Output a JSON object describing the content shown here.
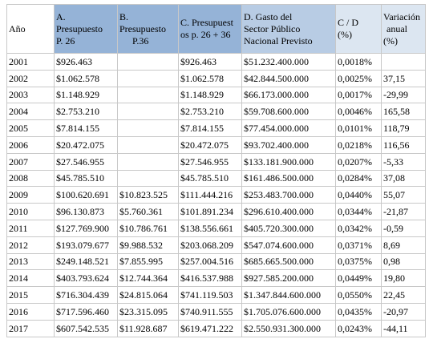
{
  "table": {
    "header": [
      [
        "Año"
      ],
      [
        "A.",
        "Presupuesto",
        "P. 26"
      ],
      [
        "B.",
        "Presupuesto",
        "P.36"
      ],
      [
        "C. Presupuest",
        "os p. 26 + 36"
      ],
      [
        "D. Gasto del",
        "Sector Público",
        "Nacional Previsto"
      ],
      [
        "C / D",
        "(%)"
      ],
      [
        "Variación",
        "anual",
        "(%)"
      ]
    ],
    "rows": [
      [
        "2001",
        "$926.463",
        null,
        "$926.463",
        "$51.232.400.000",
        "0,0018%",
        null
      ],
      [
        "2002",
        "$1.062.578",
        null,
        "$1.062.578",
        "$42.844.500.000",
        "0,0025%",
        "37,15"
      ],
      [
        "2003",
        "$1.148.929",
        null,
        "$1.148.929",
        "$66.173.000.000",
        "0,0017%",
        "-29,99"
      ],
      [
        "2004",
        "$2.753.210",
        null,
        "$2.753.210",
        "$59.708.600.000",
        "0,0046%",
        "165,58"
      ],
      [
        "2005",
        "$7.814.155",
        null,
        "$7.814.155",
        "$77.454.000.000",
        "0,0101%",
        "118,79"
      ],
      [
        "2006",
        "$20.472.075",
        null,
        "$20.472.075",
        "$93.702.400.000",
        "0,0218%",
        "116,56"
      ],
      [
        "2007",
        "$27.546.955",
        null,
        "$27.546.955",
        "$133.181.900.000",
        "0,0207%",
        "-5,33"
      ],
      [
        "2008",
        "$45.785.510",
        null,
        "$45.785.510",
        "$161.486.500.000",
        "0,0284%",
        "37,08"
      ],
      [
        "2009",
        "$100.620.691",
        "$10.823.525",
        "$111.444.216",
        "$253.483.700.000",
        "0,0440%",
        "55,07"
      ],
      [
        "2010",
        "$96.130.873",
        "$5.760.361",
        "$101.891.234",
        "$296.610.400.000",
        "0,0344%",
        "-21,87"
      ],
      [
        "2011",
        "$127.769.900",
        "$10.786.761",
        "$138.556.661",
        "$405.720.300.000",
        "0,0342%",
        "-0,59"
      ],
      [
        "2012",
        "$193.079.677",
        "$9.988.532",
        "$203.068.209",
        "$547.074.600.000",
        "0,0371%",
        "8,69"
      ],
      [
        "2013",
        "$249.148.521",
        "$7.855.995",
        "$257.004.516",
        "$685.665.500.000",
        "0,0375%",
        "0,98"
      ],
      [
        "2014",
        "$403.793.624",
        "$12.744.364",
        "$416.537.988",
        "$927.585.200.000",
        "0,0449%",
        "19,80"
      ],
      [
        "2015",
        "$716.304.439",
        "$24.815.064",
        "$741.119.503",
        "$1.347.844.600.000",
        "0,0550%",
        "22,45"
      ],
      [
        "2016",
        "$717.596.460",
        "$23.315.095",
        "$740.911.555",
        "$1.705.076.600.000",
        "0,0435%",
        "-20,97"
      ],
      [
        "2017",
        "$607.542.535",
        "$11.928.687",
        "$619.471.222",
        "$2.550.931.300.000",
        "0,0243%",
        "-44,11"
      ]
    ]
  }
}
